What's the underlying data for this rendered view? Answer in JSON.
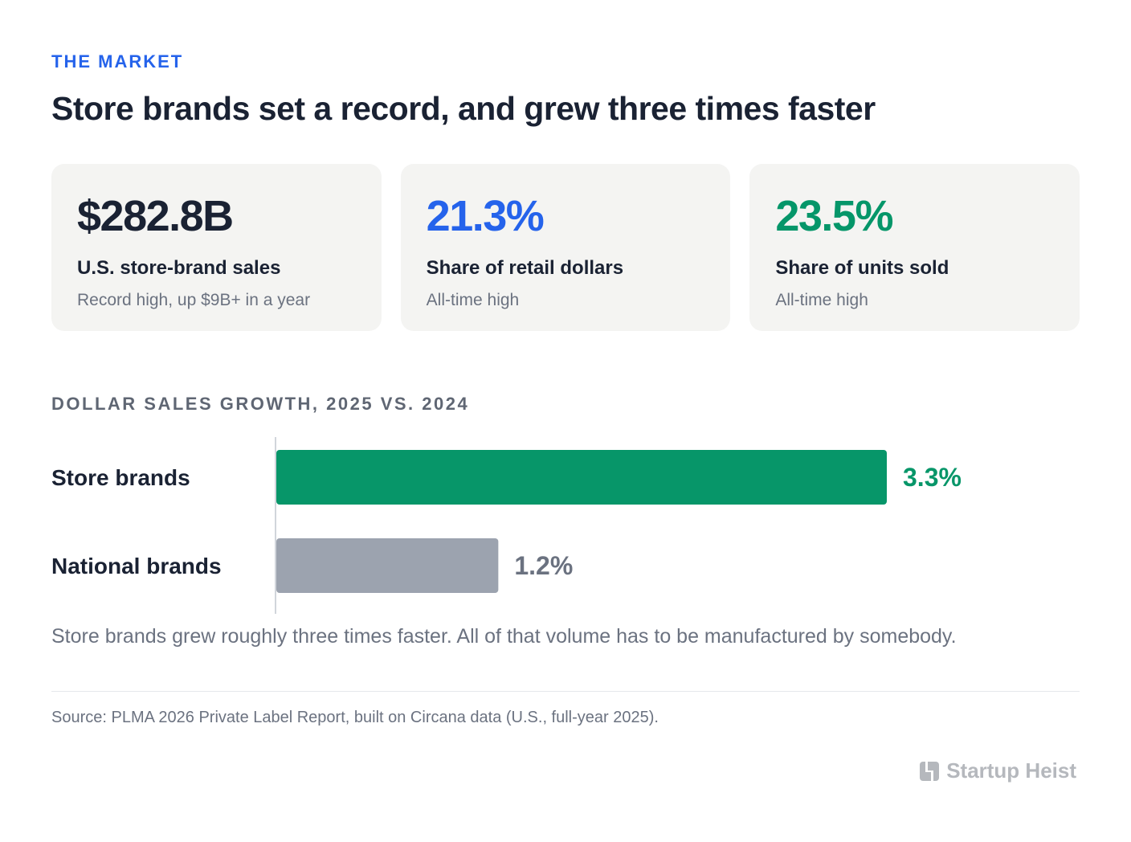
{
  "eyebrow": "THE MARKET",
  "headline": "Store brands set a record, and grew three times faster",
  "stats": [
    {
      "value": "$282.8B",
      "label": "U.S. store-brand sales",
      "sub": "Record high, up $9B+ in a year",
      "color": "#1a2233"
    },
    {
      "value": "21.3%",
      "label": "Share of retail dollars",
      "sub": "All-time high",
      "color": "#2563eb"
    },
    {
      "value": "23.5%",
      "label": "Share of units sold",
      "sub": "All-time high",
      "color": "#059669"
    }
  ],
  "chart_data": {
    "type": "bar",
    "orientation": "horizontal",
    "title": "DOLLAR SALES GROWTH, 2025 VS. 2024",
    "categories": [
      "Store brands",
      "National brands"
    ],
    "values": [
      3.3,
      1.2
    ],
    "value_labels": [
      "3.3%",
      "1.2%"
    ],
    "colors": [
      "#079669",
      "#9ca3af"
    ],
    "label_colors": [
      "#079669",
      "#6b7280"
    ],
    "xlim": [
      0,
      3.3
    ],
    "grid": false,
    "legend": "none"
  },
  "caption": "Store brands grew roughly three times faster. All of that volume has to be manufactured by somebody.",
  "source": "Source: PLMA 2026 Private Label Report, built on Circana data (U.S., full-year 2025).",
  "brand": {
    "name": "Startup Heist",
    "icon": "startup-heist-logo-icon"
  }
}
